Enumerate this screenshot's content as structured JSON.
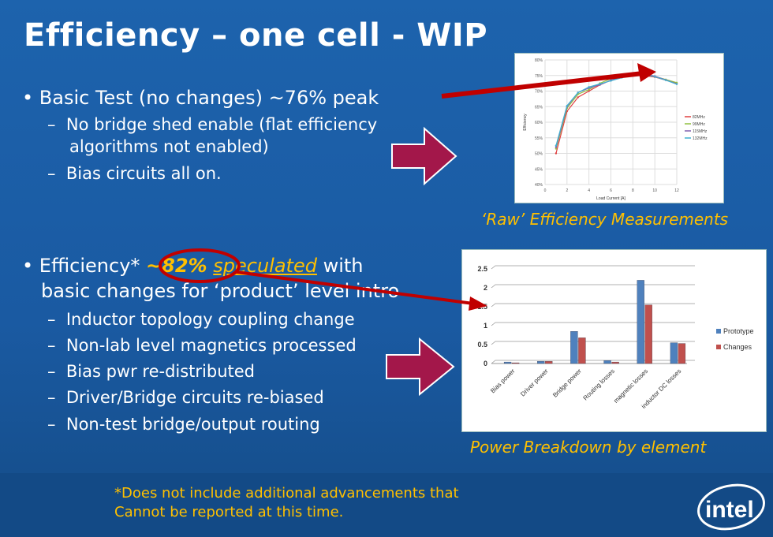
{
  "title": "Efficiency – one cell - WIP",
  "bullets": [
    {
      "text": "Basic Test (no changes) ~76% peak",
      "subs": [
        "No bridge shed enable (flat efficiency",
        "algorithms not enabled)",
        "Bias circuits all on."
      ]
    },
    {
      "prefix": "Efficiency*",
      "highlight": "~82%",
      "underlined": "speculated",
      "suffix": "with",
      "line2": "basic changes for ‘product’ level intro",
      "subs": [
        "Inductor topology coupling change",
        "Non-lab level magnetics processed",
        "Bias pwr re-distributed",
        "Driver/Bridge circuits re-biased",
        "Non-test bridge/output routing"
      ]
    }
  ],
  "dash": "–",
  "captions": [
    "‘Raw’ Efficiency Measurements",
    "Power Breakdown by element"
  ],
  "footnote": [
    "*Does not include additional advancements that",
    "Cannot be reported at this time."
  ],
  "logo": "intel",
  "colors": {
    "accent": "#ffc000",
    "arrow_red": "#c00000",
    "arrow_magenta": "#a3174a"
  },
  "chart_data": [
    {
      "type": "line",
      "title": "",
      "xlabel": "Load Current [A]",
      "ylabel": "Efficiency",
      "xlim": [
        0,
        12
      ],
      "ylim": [
        40,
        80
      ],
      "xticks": [
        "0",
        "2",
        "4",
        "6",
        "8",
        "10",
        "12"
      ],
      "yticks": [
        "40%",
        "45%",
        "50%",
        "55%",
        "60%",
        "65%",
        "70%",
        "75%",
        "80%"
      ],
      "x": [
        1,
        2,
        3,
        4,
        5,
        6,
        7,
        8,
        9,
        10,
        11,
        12
      ],
      "series": [
        {
          "name": "82MHz",
          "color": "#e04040",
          "values": [
            50,
            63.5,
            68,
            70,
            72,
            73.5,
            74.5,
            75.5,
            75,
            74.5,
            73.5,
            72.5
          ]
        },
        {
          "name": "99MHz",
          "color": "#90c040",
          "values": [
            51.5,
            64.5,
            69,
            70.5,
            72.5,
            74,
            75,
            75.5,
            75.3,
            74.7,
            73.7,
            72.7
          ]
        },
        {
          "name": "115MHz",
          "color": "#8060b0",
          "values": [
            52,
            65,
            69.5,
            71,
            72,
            73.5,
            74.5,
            75.8,
            75.5,
            74.8,
            73.6,
            72.3
          ]
        },
        {
          "name": "132MHz",
          "color": "#40b0d0",
          "values": [
            52.5,
            65.3,
            69.5,
            71.3,
            72.3,
            73.3,
            74.3,
            75.6,
            75.4,
            74.6,
            73.5,
            72.2
          ]
        }
      ]
    },
    {
      "type": "bar",
      "title": "",
      "ylim": [
        0,
        2.5
      ],
      "yticks": [
        "0",
        "0.5",
        "1",
        "1.5",
        "2",
        "2.5"
      ],
      "categories": [
        "Bias power",
        "Driver power",
        "Bridge power",
        "Routing losses",
        "magnetic losses",
        "inductor DC losses"
      ],
      "series": [
        {
          "name": "Prototype",
          "color": "#4f81bd",
          "values": [
            0.04,
            0.06,
            0.85,
            0.08,
            2.2,
            0.55
          ]
        },
        {
          "name": "Changes",
          "color": "#c0504d",
          "values": [
            0.02,
            0.06,
            0.68,
            0.04,
            1.55,
            0.53
          ]
        }
      ]
    }
  ]
}
